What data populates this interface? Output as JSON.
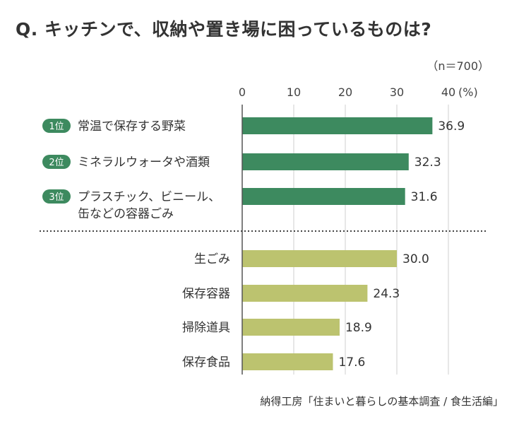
{
  "title": "Q. キッチンで、収納や置き場に困っているものは?",
  "sample_note": "（n＝700）",
  "source": "納得工房「住まいと暮らしの基本調査 / 食生活編」",
  "colors": {
    "top": "#3d8a5f",
    "other": "#bcc36f",
    "text": "#333333"
  },
  "chart_data": {
    "type": "bar",
    "orientation": "horizontal",
    "unit": "(%)",
    "xlim": [
      0,
      40
    ],
    "ticks": [
      "0",
      "10",
      "20",
      "30",
      "40"
    ],
    "grid": true,
    "categories": [
      {
        "rank": "1位",
        "label": [
          "常温で保存する野菜"
        ],
        "value": 36.9,
        "value_label": "36.9",
        "group": "top"
      },
      {
        "rank": "2位",
        "label": [
          "ミネラルウォータや酒類"
        ],
        "value": 32.3,
        "value_label": "32.3",
        "group": "top"
      },
      {
        "rank": "3位",
        "label": [
          "プラスチック、ビニール、",
          "缶などの容器ごみ"
        ],
        "value": 31.6,
        "value_label": "31.6",
        "group": "top"
      },
      {
        "rank": "",
        "label": [
          "生ごみ"
        ],
        "value": 30.0,
        "value_label": "30.0",
        "group": "other"
      },
      {
        "rank": "",
        "label": [
          "保存容器"
        ],
        "value": 24.3,
        "value_label": "24.3",
        "group": "other"
      },
      {
        "rank": "",
        "label": [
          "掃除道具"
        ],
        "value": 18.9,
        "value_label": "18.9",
        "group": "other"
      },
      {
        "rank": "",
        "label": [
          "保存食品"
        ],
        "value": 17.6,
        "value_label": "17.6",
        "group": "other"
      }
    ]
  }
}
